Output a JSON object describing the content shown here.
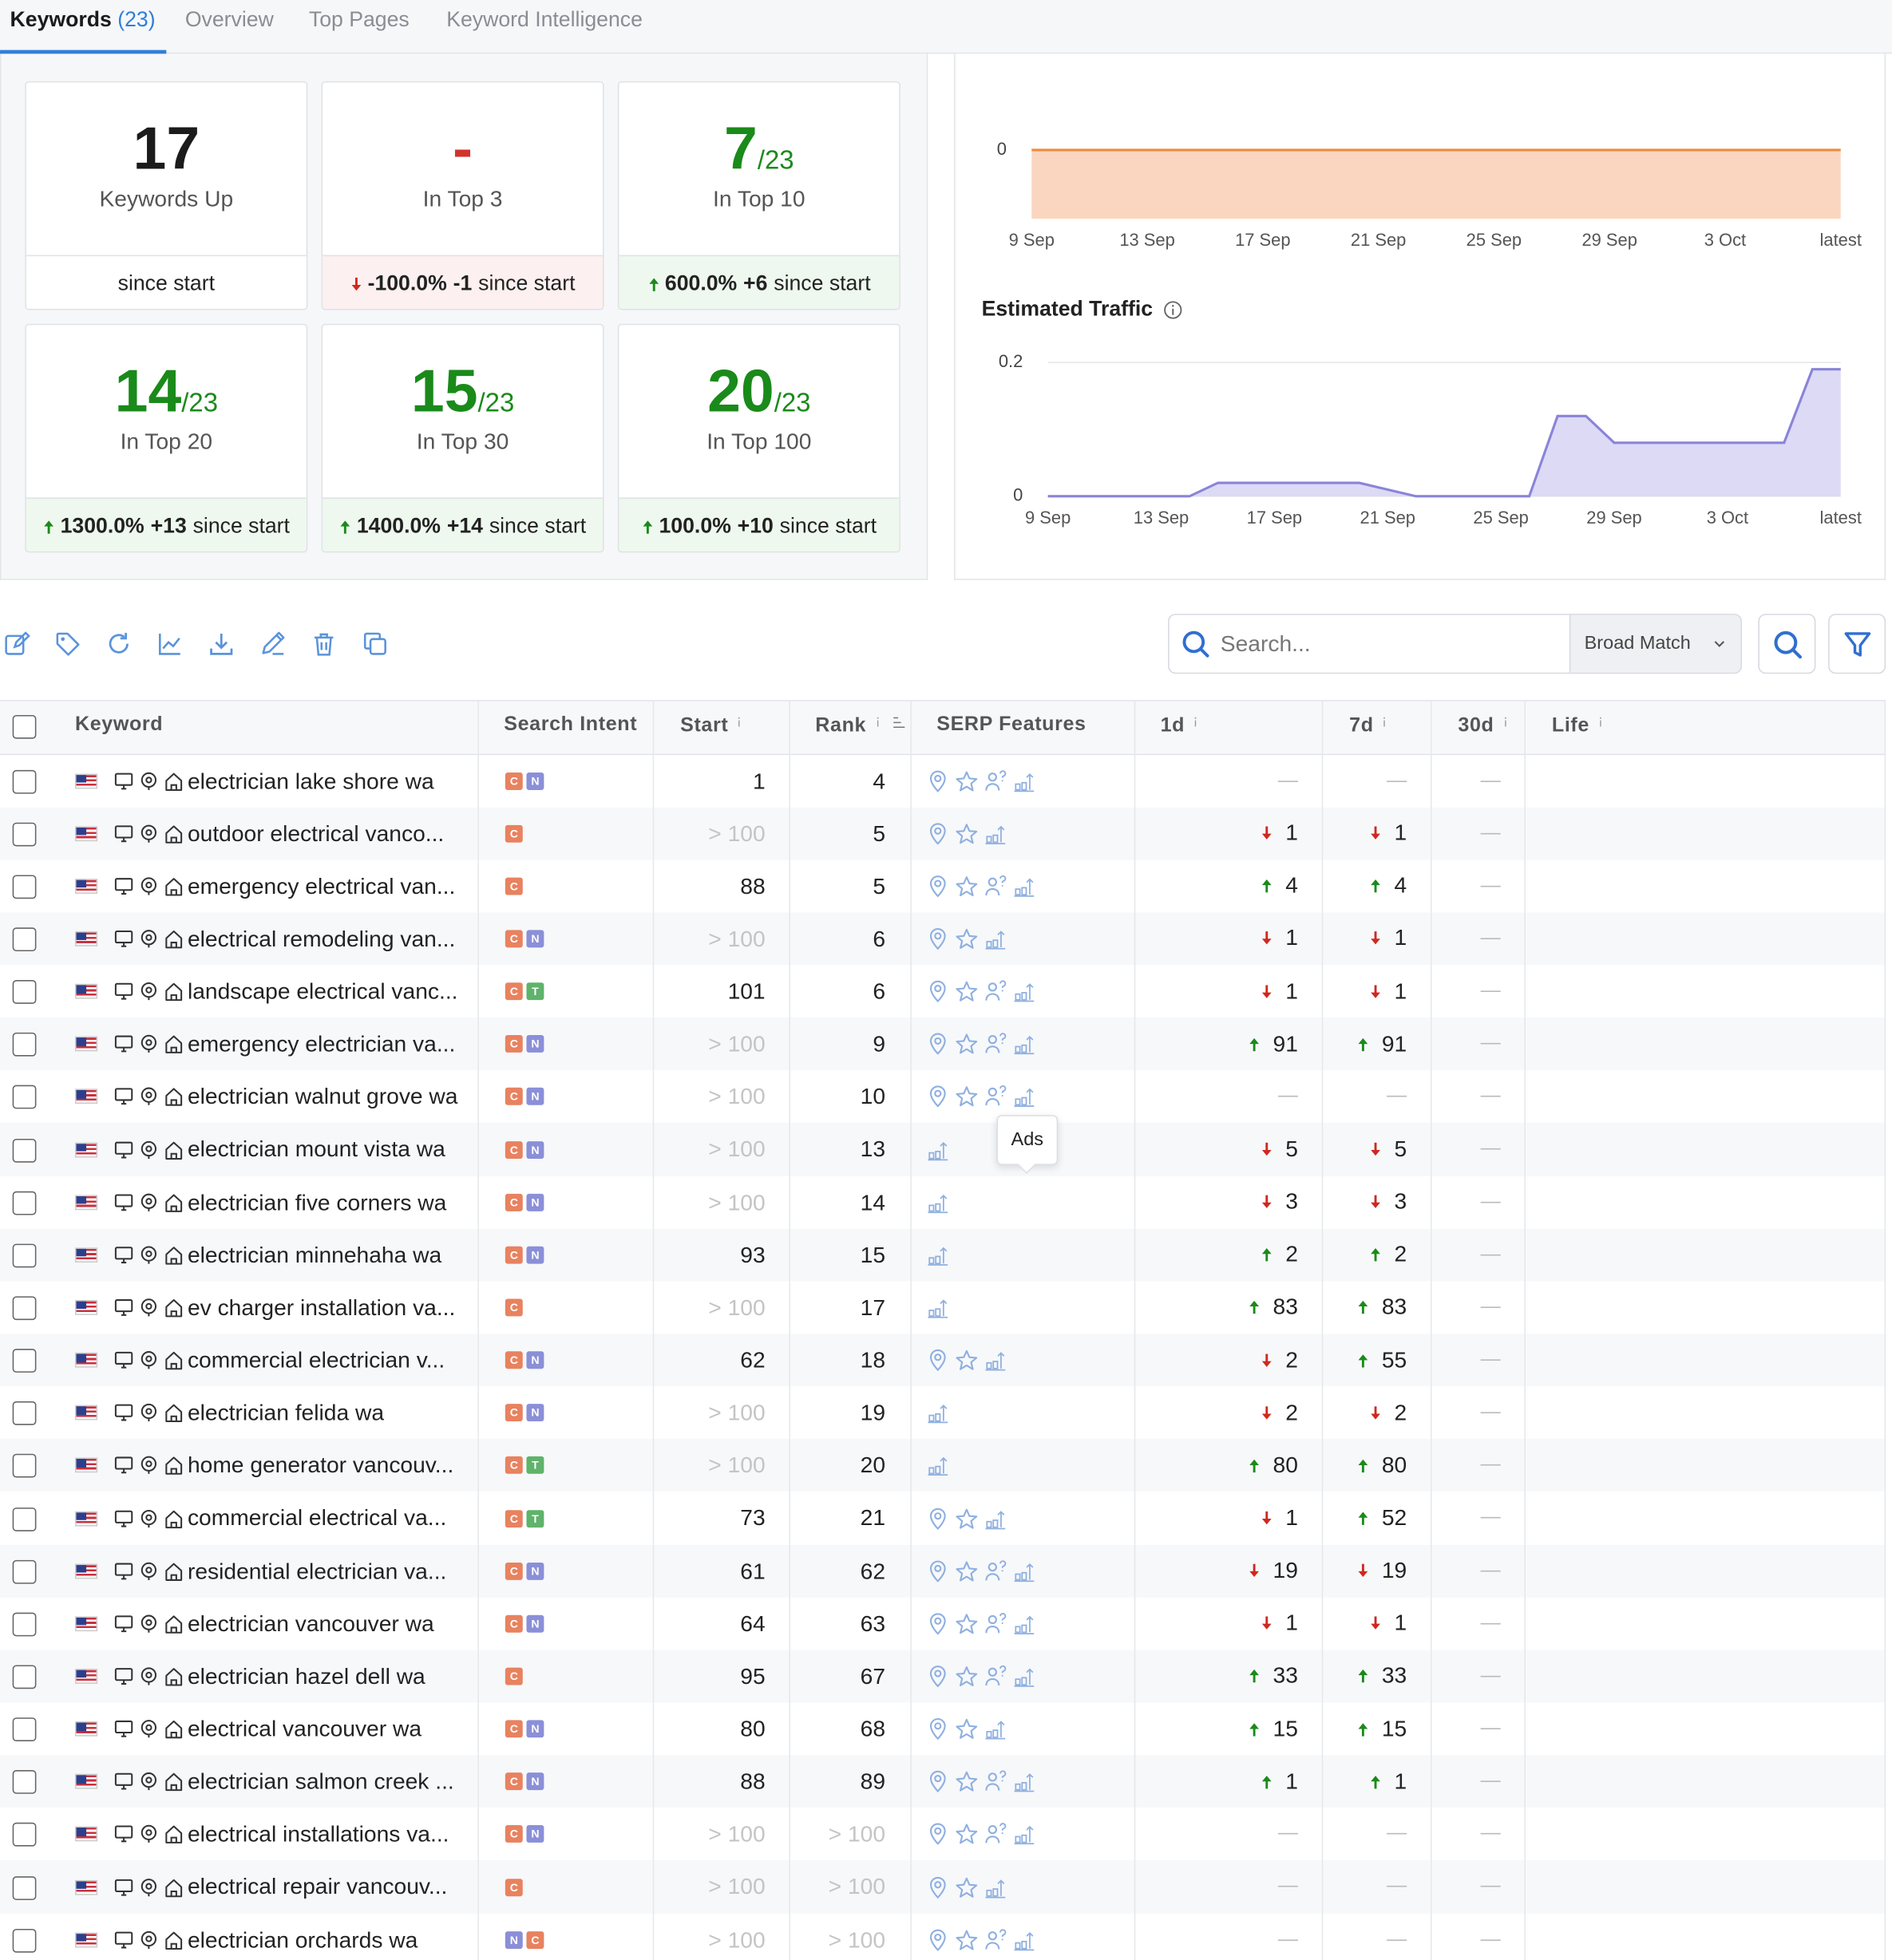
{
  "tabs": [
    {
      "label": "Keywords",
      "count": "(23)"
    },
    {
      "label": "Overview"
    },
    {
      "label": "Top Pages"
    },
    {
      "label": "Keyword Intelligence"
    }
  ],
  "cards": [
    {
      "value": 17,
      "color": "#1b1b1b",
      "label": "Keywords Up",
      "footer": {
        "text": "since start"
      }
    },
    {
      "value": "-",
      "color": "#d0342c",
      "label": "In Top 3",
      "footer": {
        "dir": "down",
        "pct": "-100.0%",
        "delta": "-1",
        "text": "since start"
      }
    },
    {
      "value": 7,
      "of": "/23",
      "color": "#1a8a1a",
      "label": "In Top 10",
      "footer": {
        "dir": "up",
        "pct": "600.0%",
        "delta": "+6",
        "text": "since start"
      }
    },
    {
      "value": 14,
      "of": "/23",
      "color": "#1a8a1a",
      "label": "In Top 20",
      "footer": {
        "dir": "up",
        "pct": "1300.0%",
        "delta": "+13",
        "text": "since start"
      }
    },
    {
      "value": 15,
      "of": "/23",
      "color": "#1a8a1a",
      "label": "In Top 30",
      "footer": {
        "dir": "up",
        "pct": "1400.0%",
        "delta": "+14",
        "text": "since start"
      }
    },
    {
      "value": 20,
      "of": "/23",
      "color": "#1a8a1a",
      "label": "In Top 100",
      "footer": {
        "dir": "up",
        "pct": "100.0%",
        "delta": "+10",
        "text": "since start"
      }
    }
  ],
  "chart_data": [
    {
      "type": "area",
      "inverted": true,
      "color": "#f08a3c",
      "fill": "#fad6c0",
      "x": [
        0,
        1,
        2,
        3,
        4,
        5,
        6,
        7,
        8,
        9,
        10,
        11,
        12,
        13,
        14,
        15,
        16,
        17,
        18,
        19,
        20,
        21,
        22,
        23,
        24,
        25,
        26,
        27,
        28
      ],
      "values": [
        0,
        0,
        0,
        0,
        0,
        0,
        0,
        0,
        0,
        0,
        0,
        0,
        0,
        0,
        0,
        0,
        0,
        0,
        0,
        0,
        0,
        0,
        0,
        0,
        0,
        0,
        0,
        0,
        0
      ],
      "xlim": [
        0,
        28
      ],
      "xticks": [
        {
          "value": 0,
          "label": "9 Sep"
        },
        {
          "value": 4,
          "label": "13 Sep"
        },
        {
          "value": 8,
          "label": "17 Sep"
        },
        {
          "value": 12,
          "label": "21 Sep"
        },
        {
          "value": 16,
          "label": "25 Sep"
        },
        {
          "value": 20,
          "label": "29 Sep"
        },
        {
          "value": 24,
          "label": "3 Oct"
        },
        {
          "value": 28,
          "label": "latest"
        }
      ],
      "ylim": [
        0,
        1
      ],
      "yticks": [
        0
      ],
      "grid": false
    },
    {
      "type": "area",
      "title": "Estimated Traffic",
      "color": "#8a84d8",
      "fill": "#dcdaf5",
      "x": [
        0,
        1,
        2,
        3,
        4,
        5,
        6,
        7,
        8,
        9,
        10,
        11,
        12,
        13,
        14,
        15,
        16,
        17,
        18,
        19,
        20,
        21,
        22,
        23,
        24,
        25,
        26,
        27,
        28
      ],
      "values": [
        0,
        0,
        0,
        0,
        0,
        0,
        0.02,
        0.02,
        0.02,
        0.02,
        0.02,
        0.02,
        0.01,
        0,
        0,
        0,
        0,
        0,
        0.12,
        0.12,
        0.08,
        0.08,
        0.08,
        0.08,
        0.08,
        0.08,
        0.08,
        0.19,
        0.19
      ],
      "xlim": [
        0,
        28
      ],
      "xticks": [
        {
          "value": 0,
          "label": "9 Sep"
        },
        {
          "value": 4,
          "label": "13 Sep"
        },
        {
          "value": 8,
          "label": "17 Sep"
        },
        {
          "value": 12,
          "label": "21 Sep"
        },
        {
          "value": 16,
          "label": "25 Sep"
        },
        {
          "value": 20,
          "label": "29 Sep"
        },
        {
          "value": 24,
          "label": "3 Oct"
        },
        {
          "value": 28,
          "label": "latest"
        }
      ],
      "ylim": [
        0,
        0.2
      ],
      "yticks": [
        0,
        0.2
      ],
      "grid": true
    }
  ],
  "search": {
    "placeholder": "Search...",
    "match": "Broad Match"
  },
  "tooltip": "Ads",
  "table": {
    "columns": [
      "Keyword",
      "Search Intent",
      "Start",
      "Rank",
      "SERP Features",
      "1d",
      "7d",
      "30d",
      "Life"
    ],
    "rows": [
      {
        "keyword": "electrician lake shore wa",
        "intent": [
          "C",
          "N"
        ],
        "start": 1,
        "rank": 4,
        "serp": [
          "map",
          "star",
          "qa",
          "ads"
        ],
        "d1": "—",
        "d7": "—",
        "d30": "—"
      },
      {
        "keyword": "outdoor electrical vanco...",
        "intent": [
          "C"
        ],
        "start": "> 100",
        "rank": 5,
        "serp": [
          "map",
          "star",
          "ads"
        ],
        "d1": {
          "dir": "down",
          "value": 1
        },
        "d7": {
          "dir": "down",
          "value": 1
        },
        "d30": "—"
      },
      {
        "keyword": "emergency electrical van...",
        "intent": [
          "C"
        ],
        "start": 88,
        "rank": 5,
        "serp": [
          "map",
          "star",
          "qa",
          "ads"
        ],
        "d1": {
          "dir": "up",
          "value": 4
        },
        "d7": {
          "dir": "up",
          "value": 4
        },
        "d30": "—"
      },
      {
        "keyword": "electrical remodeling van...",
        "intent": [
          "C",
          "N"
        ],
        "start": "> 100",
        "rank": 6,
        "serp": [
          "map",
          "star",
          "ads"
        ],
        "d1": {
          "dir": "down",
          "value": 1
        },
        "d7": {
          "dir": "down",
          "value": 1
        },
        "d30": "—"
      },
      {
        "keyword": "landscape electrical vanc...",
        "intent": [
          "C",
          "T"
        ],
        "start": 101,
        "rank": 6,
        "serp": [
          "map",
          "star",
          "qa",
          "ads"
        ],
        "d1": {
          "dir": "down",
          "value": 1
        },
        "d7": {
          "dir": "down",
          "value": 1
        },
        "d30": "—"
      },
      {
        "keyword": "emergency electrician va...",
        "intent": [
          "C",
          "N"
        ],
        "start": "> 100",
        "rank": 9,
        "serp": [
          "map",
          "star",
          "qa",
          "ads"
        ],
        "d1": {
          "dir": "up",
          "value": 91
        },
        "d7": {
          "dir": "up",
          "value": 91
        },
        "d30": "—"
      },
      {
        "keyword": "electrician walnut grove wa",
        "intent": [
          "C",
          "N"
        ],
        "start": "> 100",
        "rank": 10,
        "serp": [
          "map",
          "star",
          "qa",
          "ads"
        ],
        "d1": "—",
        "d7": "—",
        "d30": "—"
      },
      {
        "keyword": "electrician mount vista wa",
        "intent": [
          "C",
          "N"
        ],
        "start": "> 100",
        "rank": 13,
        "serp": [
          "ads"
        ],
        "d1": {
          "dir": "down",
          "value": 5
        },
        "d7": {
          "dir": "down",
          "value": 5
        },
        "d30": "—"
      },
      {
        "keyword": "electrician five corners wa",
        "intent": [
          "C",
          "N"
        ],
        "start": "> 100",
        "rank": 14,
        "serp": [
          "ads"
        ],
        "d1": {
          "dir": "down",
          "value": 3
        },
        "d7": {
          "dir": "down",
          "value": 3
        },
        "d30": "—"
      },
      {
        "keyword": "electrician minnehaha wa",
        "intent": [
          "C",
          "N"
        ],
        "start": 93,
        "rank": 15,
        "serp": [
          "ads"
        ],
        "d1": {
          "dir": "up",
          "value": 2
        },
        "d7": {
          "dir": "up",
          "value": 2
        },
        "d30": "—"
      },
      {
        "keyword": "ev charger installation va...",
        "intent": [
          "C"
        ],
        "start": "> 100",
        "rank": 17,
        "serp": [
          "ads"
        ],
        "d1": {
          "dir": "up",
          "value": 83
        },
        "d7": {
          "dir": "up",
          "value": 83
        },
        "d30": "—"
      },
      {
        "keyword": "commercial electrician v...",
        "intent": [
          "C",
          "N"
        ],
        "start": 62,
        "rank": 18,
        "serp": [
          "map",
          "star",
          "ads"
        ],
        "d1": {
          "dir": "down",
          "value": 2
        },
        "d7": {
          "dir": "up",
          "value": 55
        },
        "d30": "—"
      },
      {
        "keyword": "electrician felida wa",
        "intent": [
          "C",
          "N"
        ],
        "start": "> 100",
        "rank": 19,
        "serp": [
          "ads"
        ],
        "d1": {
          "dir": "down",
          "value": 2
        },
        "d7": {
          "dir": "down",
          "value": 2
        },
        "d30": "—"
      },
      {
        "keyword": "home generator vancouv...",
        "intent": [
          "C",
          "T"
        ],
        "start": "> 100",
        "rank": 20,
        "serp": [
          "ads"
        ],
        "d1": {
          "dir": "up",
          "value": 80
        },
        "d7": {
          "dir": "up",
          "value": 80
        },
        "d30": "—"
      },
      {
        "keyword": "commercial electrical va...",
        "intent": [
          "C",
          "T"
        ],
        "start": 73,
        "rank": 21,
        "serp": [
          "map",
          "star",
          "ads"
        ],
        "d1": {
          "dir": "down",
          "value": 1
        },
        "d7": {
          "dir": "up",
          "value": 52
        },
        "d30": "—"
      },
      {
        "keyword": "residential electrician va...",
        "intent": [
          "C",
          "N"
        ],
        "start": 61,
        "rank": 62,
        "serp": [
          "map",
          "star",
          "qa",
          "ads"
        ],
        "d1": {
          "dir": "down",
          "value": 19
        },
        "d7": {
          "dir": "down",
          "value": 19
        },
        "d30": "—"
      },
      {
        "keyword": "electrician vancouver wa",
        "intent": [
          "C",
          "N"
        ],
        "start": 64,
        "rank": 63,
        "serp": [
          "map",
          "star",
          "qa",
          "ads"
        ],
        "d1": {
          "dir": "down",
          "value": 1
        },
        "d7": {
          "dir": "down",
          "value": 1
        },
        "d30": "—"
      },
      {
        "keyword": "electrician hazel dell wa",
        "intent": [
          "C"
        ],
        "start": 95,
        "rank": 67,
        "serp": [
          "map",
          "star",
          "qa",
          "ads"
        ],
        "d1": {
          "dir": "up",
          "value": 33
        },
        "d7": {
          "dir": "up",
          "value": 33
        },
        "d30": "—"
      },
      {
        "keyword": "electrical vancouver wa",
        "intent": [
          "C",
          "N"
        ],
        "start": 80,
        "rank": 68,
        "serp": [
          "map",
          "star",
          "ads"
        ],
        "d1": {
          "dir": "up",
          "value": 15
        },
        "d7": {
          "dir": "up",
          "value": 15
        },
        "d30": "—"
      },
      {
        "keyword": "electrician salmon creek ...",
        "intent": [
          "C",
          "N"
        ],
        "start": 88,
        "rank": 89,
        "serp": [
          "map",
          "star",
          "qa",
          "ads"
        ],
        "d1": {
          "dir": "up",
          "value": 1
        },
        "d7": {
          "dir": "up",
          "value": 1
        },
        "d30": "—"
      },
      {
        "keyword": "electrical installations va...",
        "intent": [
          "C",
          "N"
        ],
        "start": "> 100",
        "rank": "> 100",
        "serp": [
          "map",
          "star",
          "qa",
          "ads"
        ],
        "d1": "—",
        "d7": "—",
        "d30": "—"
      },
      {
        "keyword": "electrical repair vancouv...",
        "intent": [
          "C"
        ],
        "start": "> 100",
        "rank": "> 100",
        "serp": [
          "map",
          "star",
          "ads"
        ],
        "d1": "—",
        "d7": "—",
        "d30": "—"
      },
      {
        "keyword": "electrician orchards wa",
        "intent": [
          "N",
          "C"
        ],
        "start": "> 100",
        "rank": "> 100",
        "serp": [
          "map",
          "star",
          "qa",
          "ads"
        ],
        "d1": "—",
        "d7": "—",
        "d30": "—"
      }
    ]
  }
}
